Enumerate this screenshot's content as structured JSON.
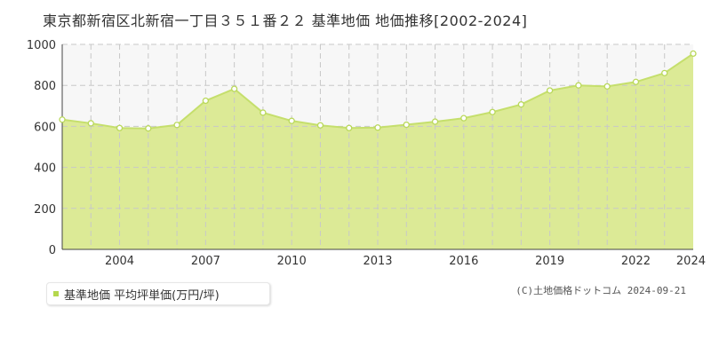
{
  "title": "東京都新宿区北新宿一丁目３５１番２２ 基準地価 地価推移[2002-2024]",
  "legend_label": "基準地価 平均坪単価(万円/坪)",
  "credit": "(C)土地価格ドットコム 2024-09-21",
  "colors": {
    "area_fill": "#dcea96",
    "line": "#c5df6c",
    "marker_stroke": "#b9d85a",
    "plot_bg": "#f7f7f7",
    "grid": "#c8c8c8",
    "legend_swatch": "#b5d84e"
  },
  "chart_data": {
    "type": "area",
    "x": [
      2002,
      2003,
      2004,
      2005,
      2006,
      2007,
      2008,
      2009,
      2010,
      2011,
      2012,
      2013,
      2014,
      2015,
      2016,
      2017,
      2018,
      2019,
      2020,
      2021,
      2022,
      2023,
      2024
    ],
    "values": [
      633,
      615,
      592,
      590,
      607,
      725,
      783,
      667,
      627,
      605,
      592,
      594,
      608,
      623,
      640,
      670,
      707,
      775,
      800,
      795,
      817,
      860,
      955
    ],
    "xlim": [
      2002,
      2024
    ],
    "ylim": [
      0,
      1000
    ],
    "y_ticks": [
      0,
      200,
      400,
      600,
      800,
      1000
    ],
    "x_tick_labels": [
      "2004",
      "2007",
      "2010",
      "2013",
      "2016",
      "2019",
      "2022",
      "2024"
    ],
    "xlabel": "",
    "ylabel": "",
    "grid": true
  }
}
